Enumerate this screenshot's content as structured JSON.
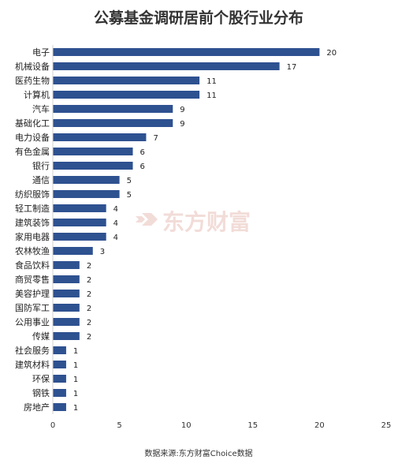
{
  "chart_data": {
    "type": "bar",
    "orientation": "horizontal",
    "title": "公募基金调研居前个股行业分布",
    "categories": [
      "电子",
      "机械设备",
      "医药生物",
      "计算机",
      "汽车",
      "基础化工",
      "电力设备",
      "有色金属",
      "银行",
      "通信",
      "纺织服饰",
      "轻工制造",
      "建筑装饰",
      "家用电器",
      "农林牧渔",
      "食品饮料",
      "商贸零售",
      "美容护理",
      "国防军工",
      "公用事业",
      "传媒",
      "社会服务",
      "建筑材料",
      "环保",
      "钢铁",
      "房地产"
    ],
    "values": [
      20,
      17,
      11,
      11,
      9,
      9,
      7,
      6,
      6,
      5,
      5,
      4,
      4,
      4,
      3,
      2,
      2,
      2,
      2,
      2,
      2,
      1,
      1,
      1,
      1,
      1
    ],
    "xlim": [
      0,
      25
    ],
    "xticks": [
      0,
      5,
      10,
      15,
      20,
      25
    ],
    "grid": false,
    "bar_color": "#2e5190",
    "data_labels": true
  },
  "source": "数据来源:东方财富Choice数据",
  "watermark": {
    "text": "东方财富",
    "icon": "eastmoney-logo-icon",
    "color": "#f0d6d2"
  }
}
